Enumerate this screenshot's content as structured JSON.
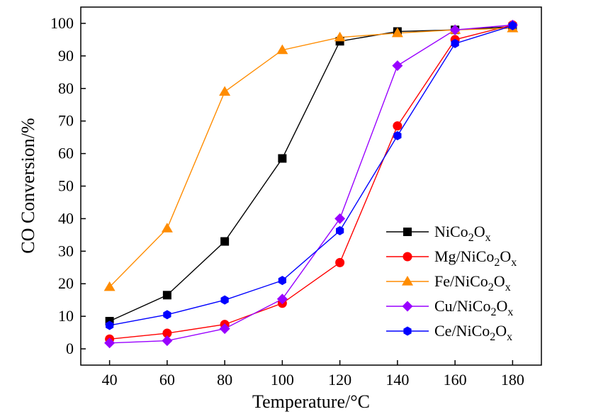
{
  "chart_data": {
    "type": "line",
    "xlabel": "Temperature/°C",
    "ylabel": "CO Conversion/%",
    "x": [
      40,
      60,
      80,
      100,
      120,
      140,
      160,
      180
    ],
    "xlim": [
      30,
      190
    ],
    "ylim": [
      -5,
      105
    ],
    "xticks": [
      40,
      60,
      80,
      100,
      120,
      140,
      160,
      180
    ],
    "yticks": [
      0,
      10,
      20,
      30,
      40,
      50,
      60,
      70,
      80,
      90,
      100
    ],
    "grid": false,
    "legend_position": "bottom-right",
    "series": [
      {
        "name": "NiCo2Ox",
        "legend_base": "NiCo",
        "legend_sub1": "2",
        "legend_mid": "O",
        "legend_sub2": "x",
        "color": "#000000",
        "marker": "square",
        "values": [
          8.5,
          16.5,
          33,
          58.5,
          94.5,
          97.5,
          98,
          99
        ]
      },
      {
        "name": "Mg/NiCo2Ox",
        "legend_base": "Mg/NiCo",
        "legend_sub1": "2",
        "legend_mid": "O",
        "legend_sub2": "x",
        "color": "#ff0000",
        "marker": "circle",
        "values": [
          3,
          4.8,
          7.5,
          14,
          26.5,
          68.5,
          95,
          99.5
        ]
      },
      {
        "name": "Fe/NiCo2Ox",
        "legend_base": "Fe/NiCo",
        "legend_sub1": "2",
        "legend_mid": "O",
        "legend_sub2": "x",
        "color": "#ff8c00",
        "marker": "triangle",
        "values": [
          19,
          37,
          79,
          91.8,
          95.7,
          97,
          98,
          98.5
        ]
      },
      {
        "name": "Cu/NiCo2Ox",
        "legend_base": "Cu/NiCo",
        "legend_sub1": "2",
        "legend_mid": "O",
        "legend_sub2": "x",
        "color": "#9900ff",
        "marker": "diamond",
        "values": [
          1.8,
          2.5,
          6.2,
          15.3,
          40,
          87,
          98,
          99.5
        ]
      },
      {
        "name": "Ce/NiCo2Ox",
        "legend_base": "Ce/NiCo",
        "legend_sub1": "2",
        "legend_mid": "O",
        "legend_sub2": "x",
        "color": "#0000ff",
        "marker": "hexagon",
        "values": [
          7.2,
          10.5,
          15,
          21,
          36.3,
          65.5,
          93.8,
          99.3
        ]
      }
    ]
  }
}
